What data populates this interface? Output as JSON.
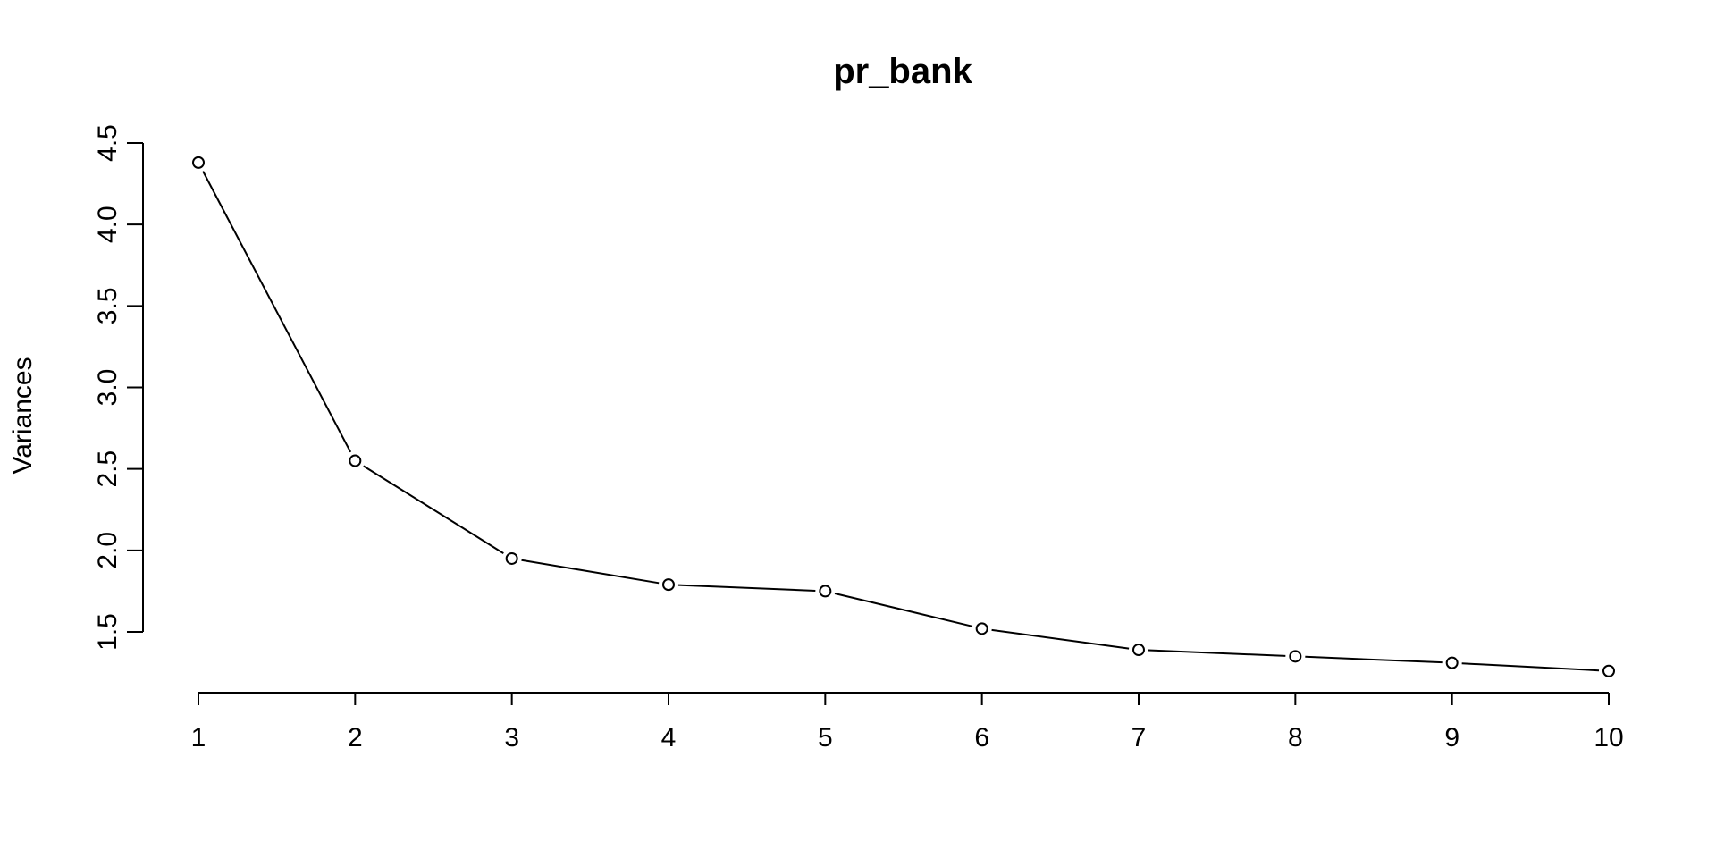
{
  "chart_data": {
    "type": "line",
    "title": "pr_bank",
    "xlabel": "",
    "ylabel": "Variances",
    "x": [
      1,
      2,
      3,
      4,
      5,
      6,
      7,
      8,
      9,
      10
    ],
    "x_tick_labels": [
      "1",
      "2",
      "3",
      "4",
      "5",
      "6",
      "7",
      "8",
      "9",
      "10"
    ],
    "series": [
      {
        "values": [
          4.38,
          2.55,
          1.95,
          1.79,
          1.75,
          1.52,
          1.39,
          1.35,
          1.31,
          1.26
        ]
      }
    ],
    "y_ticks": [
      1.5,
      2.0,
      2.5,
      3.0,
      3.5,
      4.0,
      4.5
    ],
    "y_tick_labels": [
      "1.5",
      "2.0",
      "2.5",
      "3.0",
      "3.5",
      "4.0",
      "4.5"
    ],
    "xlim": [
      1,
      10
    ],
    "ylim": [
      1.26,
      4.5
    ],
    "grid": false,
    "legend": "none",
    "marker": "open-circle",
    "colors": {
      "line": "#000000",
      "marker_fill": "#ffffff",
      "background": "#ffffff"
    }
  }
}
